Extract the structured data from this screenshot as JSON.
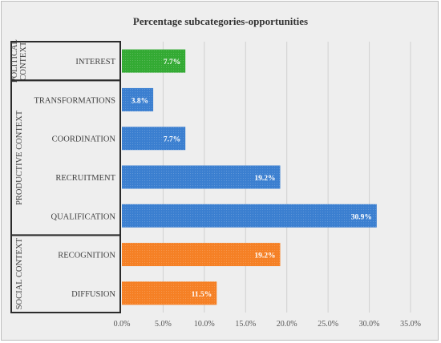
{
  "chart_data": {
    "type": "bar",
    "orientation": "horizontal",
    "title": "Percentage subcategories-opportunities",
    "xlabel": "",
    "ylabel": "",
    "xlim": [
      0,
      35
    ],
    "xticks": [
      "0.0%",
      "5.0%",
      "10.0%",
      "15.0%",
      "20.0%",
      "25.0%",
      "30.0%",
      "35.0%"
    ],
    "grid": "vertical",
    "groups": [
      {
        "label": "POLITICAL CONTEXT",
        "color": "#33aa33",
        "start": 0,
        "end": 0
      },
      {
        "label": "PRODUCTIVE CONTEXT",
        "color": "#3b7fd0",
        "start": 1,
        "end": 4
      },
      {
        "label": "SOCIAL CONTEXT",
        "color": "#f58025",
        "start": 5,
        "end": 6
      }
    ],
    "categories": [
      "INTEREST",
      "TRANSFORMATIONS",
      "COORDINATION",
      "RECRUITMENT",
      "QUALIFICATION",
      "RECOGNITION",
      "DIFFUSION"
    ],
    "values": [
      7.7,
      3.8,
      7.7,
      19.2,
      30.9,
      19.2,
      11.5
    ],
    "labels": [
      "7.7%",
      "3.8%",
      "7.7%",
      "19.2%",
      "30.9%",
      "19.2%",
      "11.5%"
    ],
    "colors": [
      "#33aa33",
      "#3b7fd0",
      "#3b7fd0",
      "#3b7fd0",
      "#3b7fd0",
      "#f58025",
      "#f58025"
    ]
  }
}
